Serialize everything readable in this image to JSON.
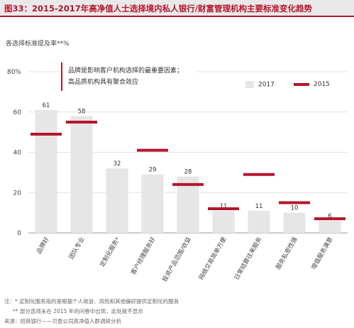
{
  "header": {
    "title": "图33：2015-2017年高净值人士选择境内私人银行/财富管理机构主要标准变化趋势"
  },
  "unit_label": "各选择标准提及率**%",
  "note": {
    "line1": "品牌是影响客户机构选择的最重要因素；",
    "line2": "高品质机构具有聚合效应"
  },
  "legend": {
    "bar_label": "2017",
    "line_label": "2015"
  },
  "footnotes": {
    "line1": "注：* 定制化服务指的是根据个人收益、风险和其他偏好提供定制化的服务",
    "line2": "** 部分选项未在 2015 年的问卷中出现，此处故不显示",
    "line3": "来源：招商银行——贝恩公司高净值人群调研分析"
  },
  "colors": {
    "bar": "#e6e6e6",
    "marker_2015": "#b5152b",
    "title": "#b5152b"
  },
  "chart_data": {
    "type": "bar",
    "title": "",
    "ylabel": "各选择标准提及率**%",
    "ylim": [
      0,
      80
    ],
    "yticks": [
      "0",
      "20",
      "40",
      "60",
      "80%"
    ],
    "categories": [
      "品牌好",
      "团队专业",
      "定制化服务*",
      "客户经理服务好",
      "投资产品范围/收益",
      "网络交易简单方便",
      "日常结算往来服务",
      "服务私密性强",
      "增值服务满意"
    ],
    "series": [
      {
        "name": "2017",
        "values": [
          61,
          58,
          32,
          29,
          28,
          11,
          11,
          10,
          6
        ],
        "labels": [
          "61",
          "58",
          "32",
          "29",
          "28",
          "11",
          "11",
          "10",
          "6"
        ]
      },
      {
        "name": "2015",
        "values": [
          49,
          55,
          null,
          41,
          24,
          12,
          29,
          15,
          7
        ]
      }
    ]
  }
}
